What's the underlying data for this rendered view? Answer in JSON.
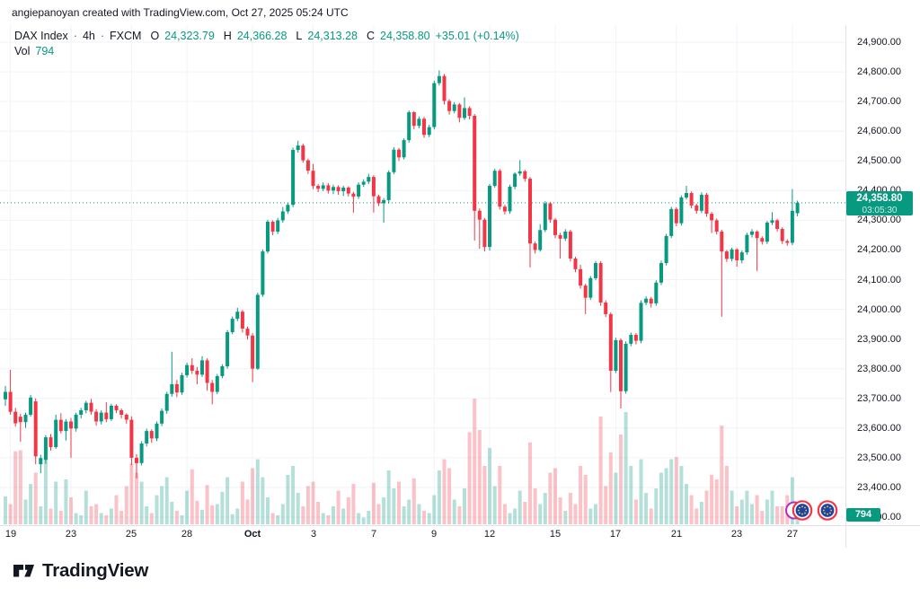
{
  "attribution": "angiepanoyan created with TradingView.com, Oct 27, 2025 05:24 UTC",
  "legend": {
    "symbol": "DAX Index",
    "sep": "·",
    "interval": "4h",
    "exchange": "FXCM",
    "open_label": "O",
    "open": "24,323.79",
    "high_label": "H",
    "high": "24,366.28",
    "low_label": "L",
    "low": "24,313.28",
    "close_label": "C",
    "close": "24,358.80",
    "change": "+35.01 (+0.14%)",
    "vol_label": "Vol",
    "vol_value": "794"
  },
  "price_scale": {
    "badge": {
      "price": "24,358.80",
      "countdown": "03:05:30"
    },
    "volume_badge": "794"
  },
  "footer": {
    "brand": "TradingView"
  },
  "colors": {
    "up": "#089981",
    "down": "#f23645",
    "volume_up": "rgba(8,153,129,0.30)",
    "volume_down": "rgba(242,54,69,0.30)",
    "grid": "#f0f3fa",
    "axis_border": "#e0e3eb",
    "axis_text": "#131722",
    "badge_bg": "#089981",
    "price_line": "#089981"
  },
  "chart_data": {
    "type": "candlestick",
    "title": "DAX Index · 4h · FXCM",
    "interval": "4h",
    "current_price": 24358.8,
    "current_bar": {
      "open": 24323.79,
      "high": 24366.28,
      "low": 24313.28,
      "close": 24358.8,
      "volume": 794,
      "change": "+35.01 (+0.14%)"
    },
    "y_axis": {
      "max_price": 24900,
      "min_price": 23300,
      "tick_step": 100,
      "ticks": [
        24900,
        24800,
        24700,
        24600,
        24500,
        24400,
        24300,
        24200,
        24100,
        24000,
        23900,
        23800,
        23700,
        23600,
        23500,
        23400,
        23300
      ]
    },
    "x_labels": [
      {
        "i": 1,
        "label": "19"
      },
      {
        "i": 13,
        "label": "23"
      },
      {
        "i": 25,
        "label": "25"
      },
      {
        "i": 36,
        "label": "28"
      },
      {
        "i": 49,
        "label": "Oct",
        "bold": true
      },
      {
        "i": 61,
        "label": "3"
      },
      {
        "i": 73,
        "label": "7"
      },
      {
        "i": 85,
        "label": "9"
      },
      {
        "i": 96,
        "label": "12"
      },
      {
        "i": 109,
        "label": "15"
      },
      {
        "i": 121,
        "label": "17"
      },
      {
        "i": 133,
        "label": "21"
      },
      {
        "i": 145,
        "label": "23"
      },
      {
        "i": 156,
        "label": "27"
      }
    ],
    "bars_format": [
      "open",
      "high",
      "low",
      "close",
      "volume"
    ],
    "bars": [
      [
        23697,
        23742,
        23675,
        23722,
        1250
      ],
      [
        23722,
        23796,
        23645,
        23655,
        900
      ],
      [
        23655,
        23668,
        23605,
        23616,
        3250
      ],
      [
        23638,
        23648,
        23554,
        23620,
        3300
      ],
      [
        23620,
        23652,
        23600,
        23645,
        1100
      ],
      [
        23645,
        23712,
        23638,
        23703,
        1800
      ],
      [
        23690,
        23700,
        23478,
        23505,
        2300
      ],
      [
        23478,
        23510,
        23448,
        23499,
        800
      ],
      [
        23493,
        23576,
        23480,
        23569,
        3000
      ],
      [
        23569,
        23580,
        23524,
        23536,
        700
      ],
      [
        23536,
        23645,
        23530,
        23628,
        1900
      ],
      [
        23628,
        23650,
        23582,
        23590,
        600
      ],
      [
        23590,
        23630,
        23558,
        23622,
        2000
      ],
      [
        23622,
        23634,
        23500,
        23598,
        1200
      ],
      [
        23598,
        23652,
        23588,
        23645,
        500
      ],
      [
        23645,
        23668,
        23632,
        23660,
        400
      ],
      [
        23660,
        23692,
        23650,
        23685,
        1500
      ],
      [
        23685,
        23698,
        23645,
        23655,
        800
      ],
      [
        23655,
        23664,
        23608,
        23622,
        900
      ],
      [
        23622,
        23660,
        23612,
        23652,
        500
      ],
      [
        23652,
        23687,
        23620,
        23630,
        400
      ],
      [
        23630,
        23682,
        23624,
        23675,
        700
      ],
      [
        23675,
        23680,
        23650,
        23660,
        1300
      ],
      [
        23660,
        23666,
        23632,
        23645,
        600
      ],
      [
        23645,
        23650,
        23615,
        23628,
        1700
      ],
      [
        23628,
        23640,
        23475,
        23500,
        2700
      ],
      [
        23500,
        23512,
        23430,
        23482,
        2300
      ],
      [
        23482,
        23556,
        23474,
        23548,
        1900
      ],
      [
        23548,
        23598,
        23538,
        23590,
        800
      ],
      [
        23590,
        23596,
        23550,
        23565,
        500
      ],
      [
        23565,
        23622,
        23556,
        23615,
        1300
      ],
      [
        23615,
        23666,
        23606,
        23658,
        1700
      ],
      [
        23658,
        23722,
        23648,
        23715,
        2100
      ],
      [
        23715,
        23857,
        23706,
        23748,
        1000
      ],
      [
        23748,
        23762,
        23704,
        23720,
        600
      ],
      [
        23720,
        23786,
        23712,
        23778,
        400
      ],
      [
        23778,
        23820,
        23770,
        23812,
        1500
      ],
      [
        23812,
        23835,
        23782,
        23793,
        2450
      ],
      [
        23793,
        23806,
        23748,
        23780,
        1050
      ],
      [
        23780,
        23842,
        23772,
        23828,
        650
      ],
      [
        23828,
        23835,
        23726,
        23752,
        1750
      ],
      [
        23752,
        23762,
        23680,
        23722,
        850
      ],
      [
        23722,
        23782,
        23714,
        23775,
        900
      ],
      [
        23775,
        23815,
        23768,
        23808,
        1450
      ],
      [
        23808,
        23930,
        23800,
        23923,
        2100
      ],
      [
        23923,
        23976,
        23916,
        23968,
        450
      ],
      [
        23968,
        24005,
        23960,
        23992,
        700
      ],
      [
        23992,
        23998,
        23922,
        23935,
        1900
      ],
      [
        23935,
        23942,
        23898,
        23912,
        1100
      ],
      [
        23912,
        23920,
        23755,
        23800,
        2500
      ],
      [
        23800,
        24056,
        23796,
        24049,
        2900
      ],
      [
        24049,
        24202,
        24042,
        24195,
        2100
      ],
      [
        24195,
        24302,
        24188,
        24295,
        1200
      ],
      [
        24295,
        24300,
        24250,
        24262,
        500
      ],
      [
        24262,
        24308,
        24254,
        24300,
        400
      ],
      [
        24300,
        24345,
        24292,
        24330,
        900
      ],
      [
        24330,
        24360,
        24322,
        24352,
        2200
      ],
      [
        24352,
        24545,
        24344,
        24537,
        2600
      ],
      [
        24537,
        24568,
        24528,
        24552,
        1400
      ],
      [
        24552,
        24558,
        24494,
        24502,
        800
      ],
      [
        24502,
        24508,
        24456,
        24467,
        1700
      ],
      [
        24467,
        24490,
        24405,
        24416,
        1900
      ],
      [
        24416,
        24422,
        24395,
        24406,
        1000
      ],
      [
        24406,
        24428,
        24398,
        24418,
        500
      ],
      [
        24418,
        24425,
        24390,
        24400,
        400
      ],
      [
        24400,
        24420,
        24388,
        24412,
        800
      ],
      [
        24412,
        24418,
        24386,
        24398,
        1500
      ],
      [
        24398,
        24416,
        24382,
        24410,
        700
      ],
      [
        24410,
        24415,
        24380,
        24390,
        1200
      ],
      [
        24390,
        24396,
        24326,
        24380,
        1800
      ],
      [
        24380,
        24428,
        24372,
        24420,
        500
      ],
      [
        24420,
        24438,
        24412,
        24430,
        300
      ],
      [
        24430,
        24457,
        24422,
        24446,
        600
      ],
      [
        24446,
        24452,
        24326,
        24381,
        1850
      ],
      [
        24381,
        24386,
        24348,
        24357,
        900
      ],
      [
        24357,
        24375,
        24292,
        24368,
        1200
      ],
      [
        24368,
        24468,
        24356,
        24462,
        2400
      ],
      [
        24462,
        24546,
        24455,
        24538,
        1600
      ],
      [
        24538,
        24544,
        24500,
        24512,
        1900
      ],
      [
        24512,
        24576,
        24505,
        24570,
        800
      ],
      [
        24570,
        24670,
        24562,
        24664,
        1100
      ],
      [
        24664,
        24668,
        24606,
        24618,
        2050
      ],
      [
        24618,
        24650,
        24610,
        24642,
        900
      ],
      [
        24642,
        24648,
        24578,
        24588,
        600
      ],
      [
        24588,
        24622,
        24580,
        24614,
        500
      ],
      [
        24614,
        24770,
        24606,
        24762,
        1300
      ],
      [
        24762,
        24805,
        24754,
        24786,
        2400
      ],
      [
        24786,
        24793,
        24690,
        24702,
        2900
      ],
      [
        24702,
        24708,
        24656,
        24668,
        2500
      ],
      [
        24668,
        24698,
        24660,
        24690,
        1100
      ],
      [
        24690,
        24695,
        24630,
        24645,
        800
      ],
      [
        24645,
        24714,
        24638,
        24678,
        1600
      ],
      [
        24678,
        24684,
        24640,
        24652,
        4100
      ],
      [
        24652,
        24658,
        24232,
        24332,
        5600
      ],
      [
        24332,
        24340,
        24204,
        24302,
        4200
      ],
      [
        24302,
        24308,
        24195,
        24210,
        2600
      ],
      [
        24210,
        24422,
        24198,
        24416,
        3400
      ],
      [
        24416,
        24474,
        24410,
        24467,
        1700
      ],
      [
        24467,
        24473,
        24336,
        24346,
        2600
      ],
      [
        24346,
        24352,
        24320,
        24330,
        900
      ],
      [
        24330,
        24420,
        24322,
        24413,
        500
      ],
      [
        24413,
        24462,
        24405,
        24457,
        700
      ],
      [
        24457,
        24503,
        24450,
        24465,
        1500
      ],
      [
        24465,
        24470,
        24430,
        24440,
        1000
      ],
      [
        24440,
        24446,
        24141,
        24222,
        3650
      ],
      [
        24222,
        24228,
        24188,
        24200,
        1600
      ],
      [
        24200,
        24287,
        24194,
        24267,
        900
      ],
      [
        24267,
        24364,
        24260,
        24357,
        1400
      ],
      [
        24357,
        24362,
        24292,
        24302,
        2300
      ],
      [
        24302,
        24308,
        24240,
        24250,
        2500
      ],
      [
        24250,
        24258,
        24171,
        24238,
        1200
      ],
      [
        24238,
        24270,
        24230,
        24262,
        600
      ],
      [
        24262,
        24268,
        24161,
        24171,
        1400
      ],
      [
        24171,
        24177,
        24125,
        24135,
        900
      ],
      [
        24135,
        24150,
        24070,
        24080,
        2600
      ],
      [
        24080,
        24086,
        23984,
        24039,
        2200
      ],
      [
        24039,
        24112,
        24032,
        24105,
        700
      ],
      [
        24105,
        24163,
        24098,
        24156,
        900
      ],
      [
        24156,
        24162,
        24012,
        24023,
        4800
      ],
      [
        24023,
        24030,
        23974,
        23984,
        1700
      ],
      [
        23984,
        23990,
        23721,
        23793,
        3200
      ],
      [
        23793,
        23904,
        23785,
        23896,
        2300
      ],
      [
        23896,
        23902,
        23666,
        23724,
        4000
      ],
      [
        23724,
        23892,
        23716,
        23884,
        5000
      ],
      [
        23884,
        23922,
        23876,
        23914,
        2600
      ],
      [
        23914,
        23920,
        23882,
        23894,
        1100
      ],
      [
        23894,
        24030,
        23886,
        24022,
        2900
      ],
      [
        24022,
        24044,
        24014,
        24036,
        1400
      ],
      [
        24036,
        24042,
        24006,
        24020,
        700
      ],
      [
        24020,
        24098,
        24012,
        24090,
        1600
      ],
      [
        24090,
        24164,
        24082,
        24156,
        2300
      ],
      [
        24156,
        24254,
        24148,
        24247,
        2500
      ],
      [
        24247,
        24345,
        24240,
        24338,
        2900
      ],
      [
        24338,
        24344,
        24280,
        24290,
        3000
      ],
      [
        24290,
        24384,
        24282,
        24377,
        2600
      ],
      [
        24377,
        24416,
        24370,
        24392,
        1800
      ],
      [
        24392,
        24397,
        24340,
        24350,
        1300
      ],
      [
        24350,
        24356,
        24322,
        24332,
        700
      ],
      [
        24332,
        24394,
        24324,
        24386,
        1000
      ],
      [
        24386,
        24392,
        24312,
        24322,
        1500
      ],
      [
        24322,
        24328,
        24257,
        24300,
        2200
      ],
      [
        24300,
        24306,
        24252,
        24262,
        2000
      ],
      [
        24262,
        24268,
        23975,
        24195,
        4400
      ],
      [
        24195,
        24200,
        24160,
        24170,
        2600
      ],
      [
        24170,
        24208,
        24162,
        24202,
        1500
      ],
      [
        24202,
        24206,
        24144,
        24165,
        800
      ],
      [
        24165,
        24198,
        24155,
        24192,
        1100
      ],
      [
        24192,
        24258,
        24184,
        24251,
        1500
      ],
      [
        24251,
        24270,
        24242,
        24262,
        900
      ],
      [
        24262,
        24266,
        24129,
        24240,
        1300
      ],
      [
        24240,
        24246,
        24218,
        24228,
        600
      ],
      [
        24228,
        24298,
        24220,
        24292,
        1100
      ],
      [
        24292,
        24327,
        24284,
        24300,
        1500
      ],
      [
        24300,
        24305,
        24262,
        24271,
        800
      ],
      [
        24271,
        24276,
        24220,
        24230,
        800
      ],
      [
        24230,
        24236,
        24214,
        24224,
        1300
      ],
      [
        24224,
        24405,
        24216,
        24332,
        2100
      ],
      [
        24323.79,
        24366.28,
        24313.28,
        24358.8,
        794
      ]
    ]
  }
}
